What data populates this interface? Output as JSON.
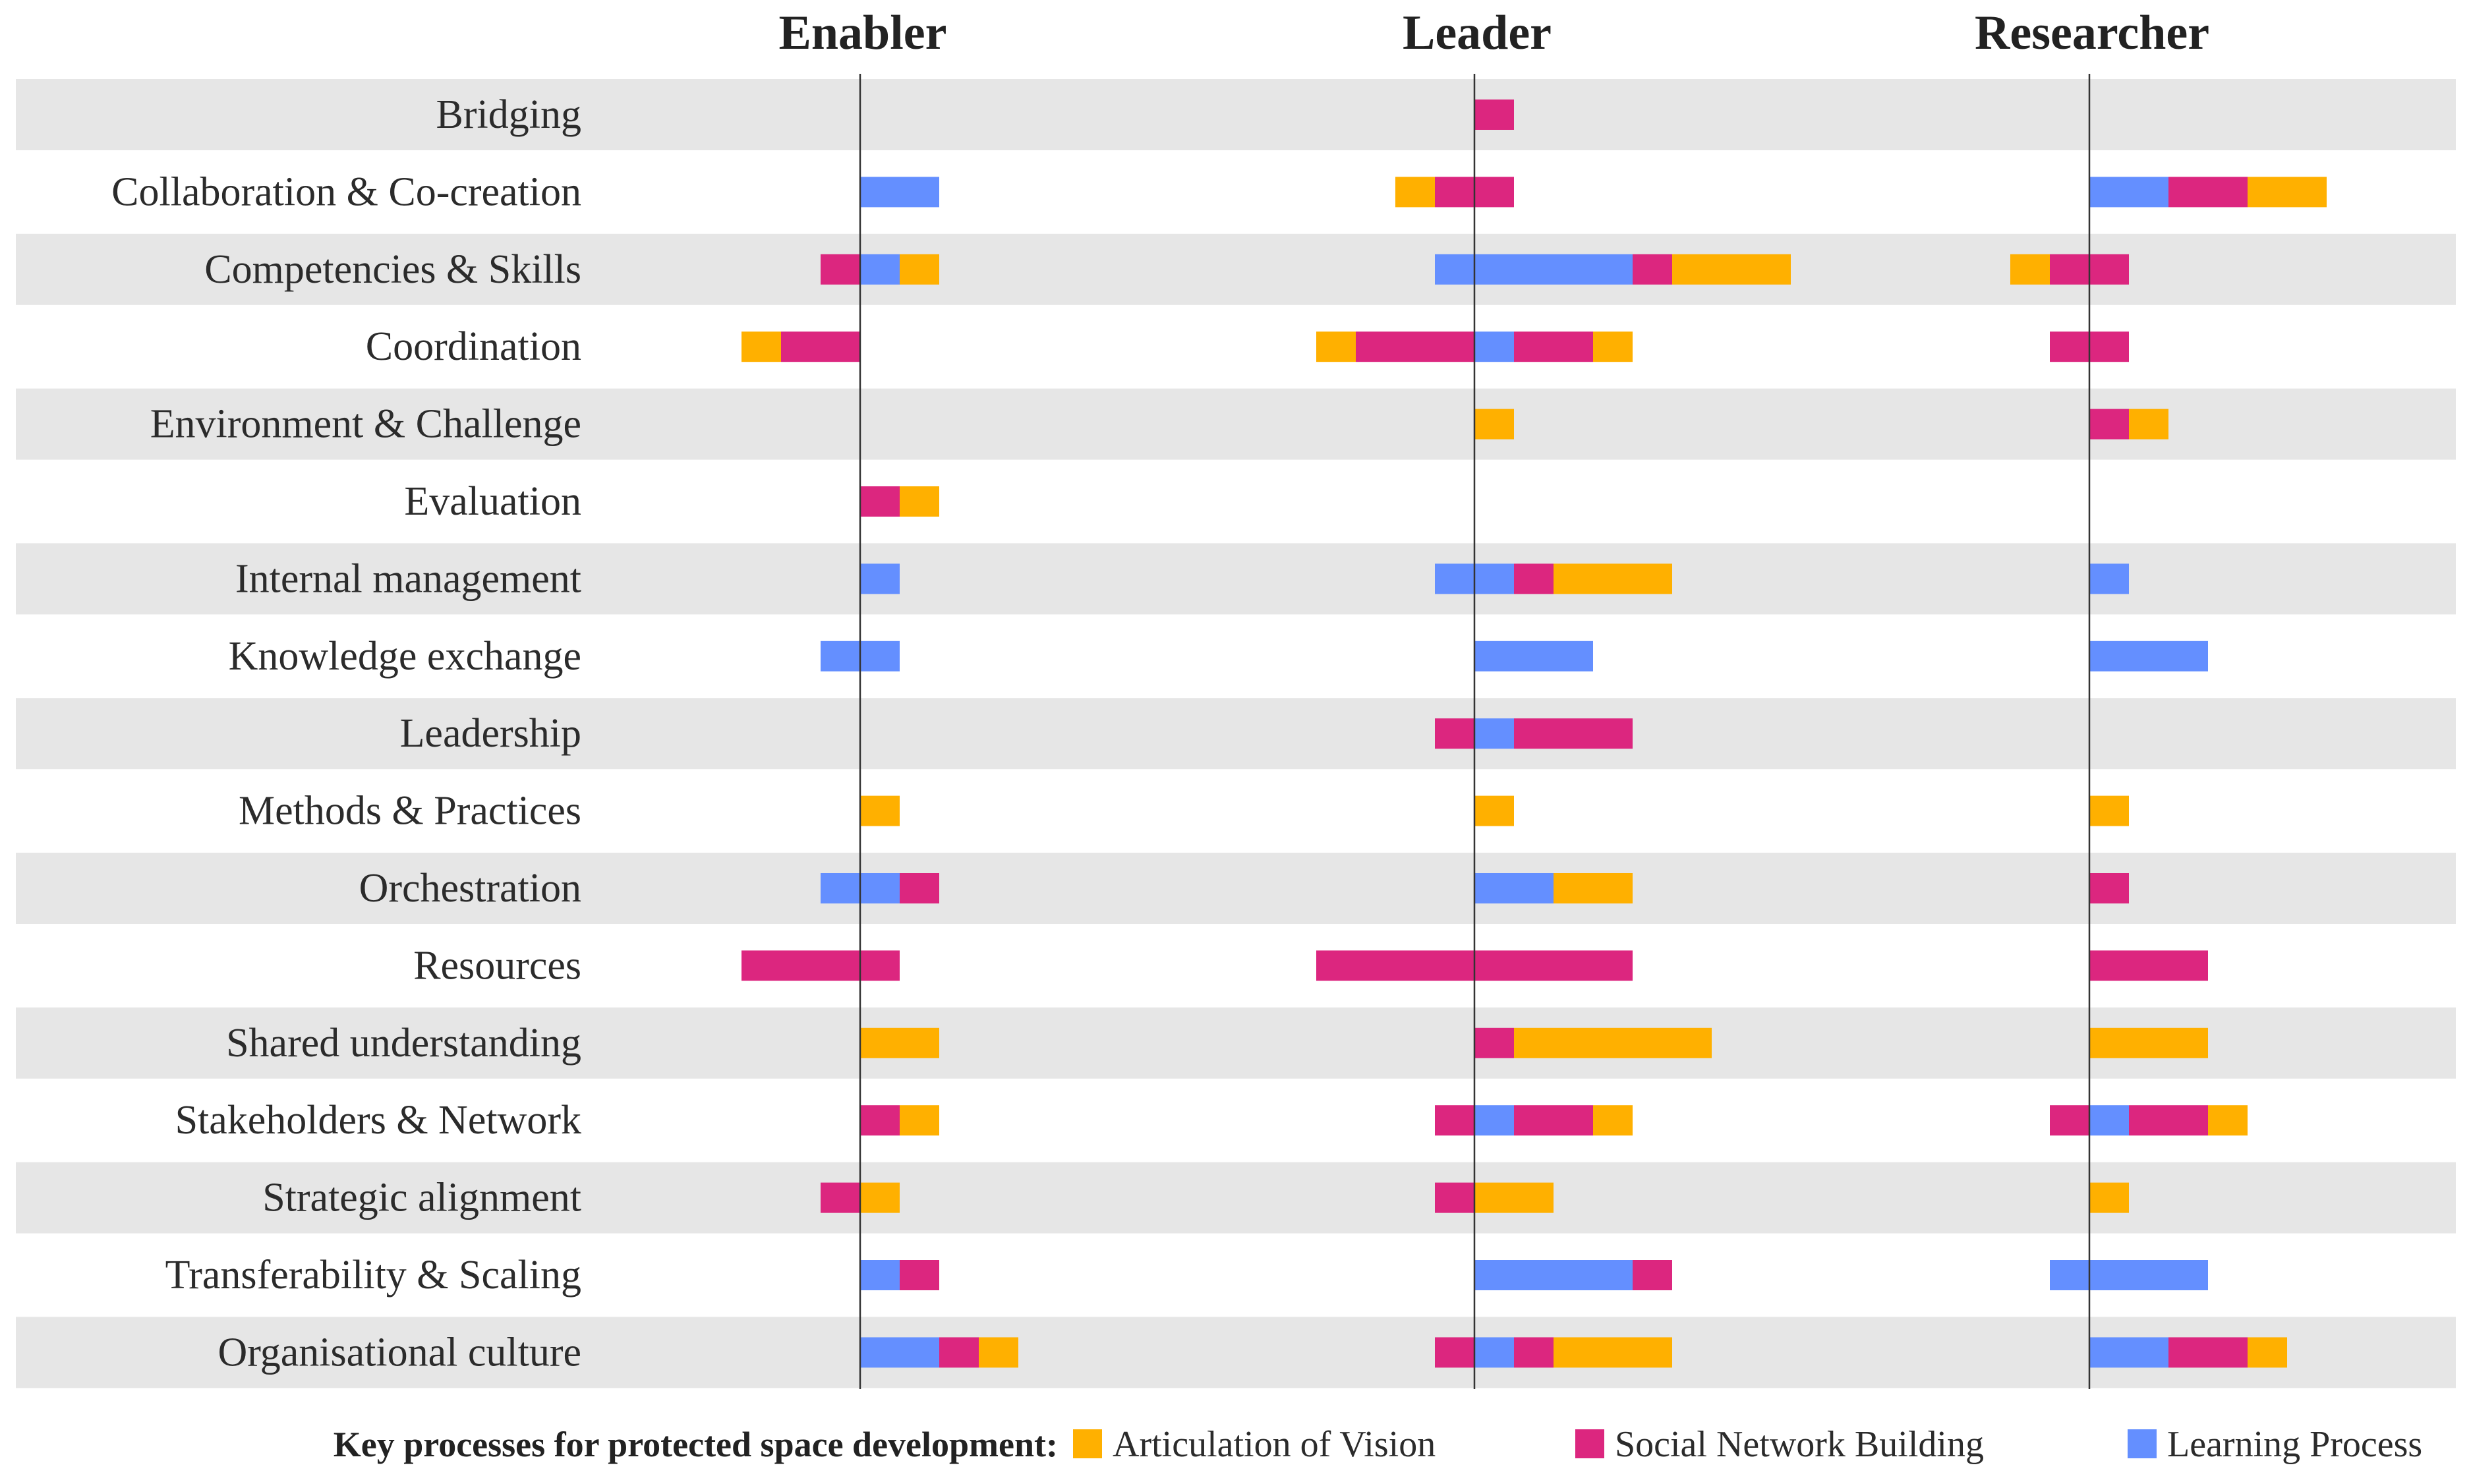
{
  "chart_data": {
    "type": "diverging-stacked-bar",
    "panels": [
      "Enabler",
      "Leader",
      "Researcher"
    ],
    "categories": [
      "Bridging",
      "Collaboration & Co-creation",
      "Competencies & Skills",
      "Coordination",
      "Environment & Challenge",
      "Evaluation",
      "Internal management",
      "Knowledge exchange",
      "Leadership",
      "Methods & Practices",
      "Orchestration",
      "Resources",
      "Shared understanding",
      "Stakeholders & Network",
      "Strategic alignment",
      "Transferability & Scaling",
      "Organisational culture"
    ],
    "series": [
      {
        "key": "vision",
        "name": "Articulation of Vision",
        "color": "#FFB000"
      },
      {
        "key": "social",
        "name": "Social Network Building",
        "color": "#DC267F"
      },
      {
        "key": "learning",
        "name": "Learning Process",
        "color": "#648FFF"
      }
    ],
    "unit_note": "Segment lengths in counts; negative values extend left of the panel axis",
    "segments": {
      "Enabler": [
        [],
        [
          [
            "learning",
            0,
            2
          ]
        ],
        [
          [
            "social",
            -1,
            0
          ],
          [
            "learning",
            0,
            1
          ],
          [
            "vision",
            1,
            2
          ]
        ],
        [
          [
            "vision",
            -3,
            -2
          ],
          [
            "social",
            -2,
            0
          ]
        ],
        [],
        [
          [
            "social",
            0,
            1
          ],
          [
            "vision",
            1,
            2
          ]
        ],
        [
          [
            "learning",
            0,
            1
          ]
        ],
        [
          [
            "learning",
            -1,
            1
          ]
        ],
        [],
        [
          [
            "vision",
            0,
            1
          ]
        ],
        [
          [
            "learning",
            -1,
            1
          ],
          [
            "social",
            1,
            2
          ]
        ],
        [
          [
            "social",
            -3,
            1
          ]
        ],
        [
          [
            "vision",
            0,
            2
          ]
        ],
        [
          [
            "social",
            0,
            1
          ],
          [
            "vision",
            1,
            2
          ]
        ],
        [
          [
            "social",
            -1,
            0
          ],
          [
            "vision",
            0,
            1
          ]
        ],
        [
          [
            "learning",
            0,
            1
          ],
          [
            "social",
            1,
            2
          ]
        ],
        [
          [
            "learning",
            0,
            2
          ],
          [
            "social",
            2,
            3
          ],
          [
            "vision",
            3,
            4
          ]
        ]
      ],
      "Leader": [
        [
          [
            "social",
            0,
            1
          ]
        ],
        [
          [
            "vision",
            -2,
            -1
          ],
          [
            "social",
            -1,
            1
          ]
        ],
        [
          [
            "learning",
            -1,
            4
          ],
          [
            "social",
            4,
            5
          ],
          [
            "vision",
            5,
            8
          ]
        ],
        [
          [
            "vision",
            -4,
            -3
          ],
          [
            "social",
            -3,
            0
          ],
          [
            "learning",
            0,
            1
          ],
          [
            "social",
            1,
            3
          ],
          [
            "vision",
            3,
            4
          ]
        ],
        [
          [
            "vision",
            0,
            1
          ]
        ],
        [],
        [
          [
            "learning",
            -1,
            1
          ],
          [
            "social",
            1,
            2
          ],
          [
            "vision",
            2,
            5
          ]
        ],
        [
          [
            "learning",
            0,
            3
          ]
        ],
        [
          [
            "social",
            -1,
            0
          ],
          [
            "learning",
            0,
            1
          ],
          [
            "social",
            1,
            4
          ]
        ],
        [
          [
            "vision",
            0,
            1
          ]
        ],
        [
          [
            "learning",
            0,
            2
          ],
          [
            "vision",
            2,
            4
          ]
        ],
        [
          [
            "social",
            -4,
            4
          ]
        ],
        [
          [
            "social",
            0,
            1
          ],
          [
            "vision",
            1,
            6
          ]
        ],
        [
          [
            "social",
            -1,
            0
          ],
          [
            "learning",
            0,
            1
          ],
          [
            "social",
            1,
            3
          ],
          [
            "vision",
            3,
            4
          ]
        ],
        [
          [
            "social",
            -1,
            0
          ],
          [
            "vision",
            0,
            2
          ]
        ],
        [
          [
            "learning",
            0,
            4
          ],
          [
            "social",
            4,
            5
          ]
        ],
        [
          [
            "social",
            -1,
            0
          ],
          [
            "learning",
            0,
            1
          ],
          [
            "social",
            1,
            2
          ],
          [
            "vision",
            2,
            5
          ]
        ]
      ],
      "Researcher": [
        [],
        [
          [
            "learning",
            0,
            2
          ],
          [
            "social",
            2,
            4
          ],
          [
            "vision",
            4,
            6
          ]
        ],
        [
          [
            "vision",
            -2,
            -1
          ],
          [
            "social",
            -1,
            1
          ]
        ],
        [
          [
            "social",
            -1,
            1
          ]
        ],
        [
          [
            "social",
            0,
            1
          ],
          [
            "vision",
            1,
            2
          ]
        ],
        [],
        [
          [
            "learning",
            0,
            1
          ]
        ],
        [
          [
            "learning",
            0,
            3
          ]
        ],
        [],
        [
          [
            "vision",
            0,
            1
          ]
        ],
        [
          [
            "social",
            0,
            1
          ]
        ],
        [
          [
            "social",
            0,
            3
          ]
        ],
        [
          [
            "vision",
            0,
            3
          ]
        ],
        [
          [
            "social",
            -1,
            0
          ],
          [
            "learning",
            0,
            1
          ],
          [
            "social",
            1,
            3
          ],
          [
            "vision",
            3,
            4
          ]
        ],
        [
          [
            "vision",
            0,
            1
          ]
        ],
        [
          [
            "learning",
            -1,
            3
          ]
        ],
        [
          [
            "learning",
            0,
            2
          ],
          [
            "social",
            2,
            4
          ],
          [
            "vision",
            4,
            5
          ]
        ]
      ]
    },
    "legend": {
      "title": "Key processes for protected space development:",
      "items": [
        "Articulation of Vision",
        "Social Network Building",
        "Learning Process"
      ]
    }
  }
}
